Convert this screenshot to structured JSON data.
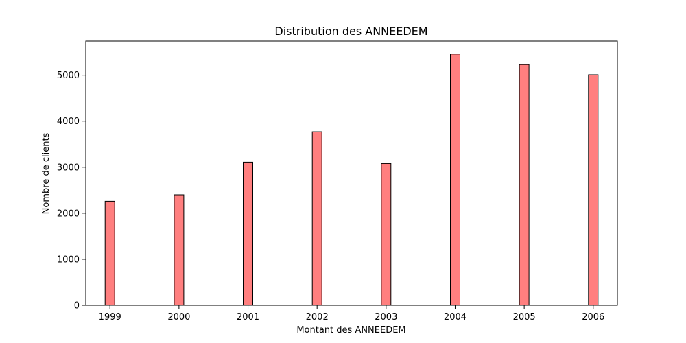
{
  "chart_data": {
    "type": "bar",
    "title": "Distribution des ANNEEDEM",
    "xlabel": "Montant des ANNEEDEM",
    "ylabel": "Nombre de clients",
    "categories": [
      "1999",
      "2000",
      "2001",
      "2002",
      "2003",
      "2004",
      "2005",
      "2006"
    ],
    "x": [
      1999,
      2000,
      2001,
      2002,
      2003,
      2004,
      2005,
      2006
    ],
    "values": [
      2260,
      2400,
      3110,
      3770,
      3080,
      5460,
      5230,
      5010
    ],
    "xlim": [
      1998.65,
      2006.35
    ],
    "ylim": [
      0,
      5740
    ],
    "xticks": [
      "1999",
      "2000",
      "2001",
      "2002",
      "2003",
      "2004",
      "2005",
      "2006"
    ],
    "yticks": [
      "0",
      "1000",
      "2000",
      "3000",
      "4000",
      "5000"
    ],
    "bar_color": "#ff7f7f",
    "edge_color": "#000000",
    "grid": false
  }
}
